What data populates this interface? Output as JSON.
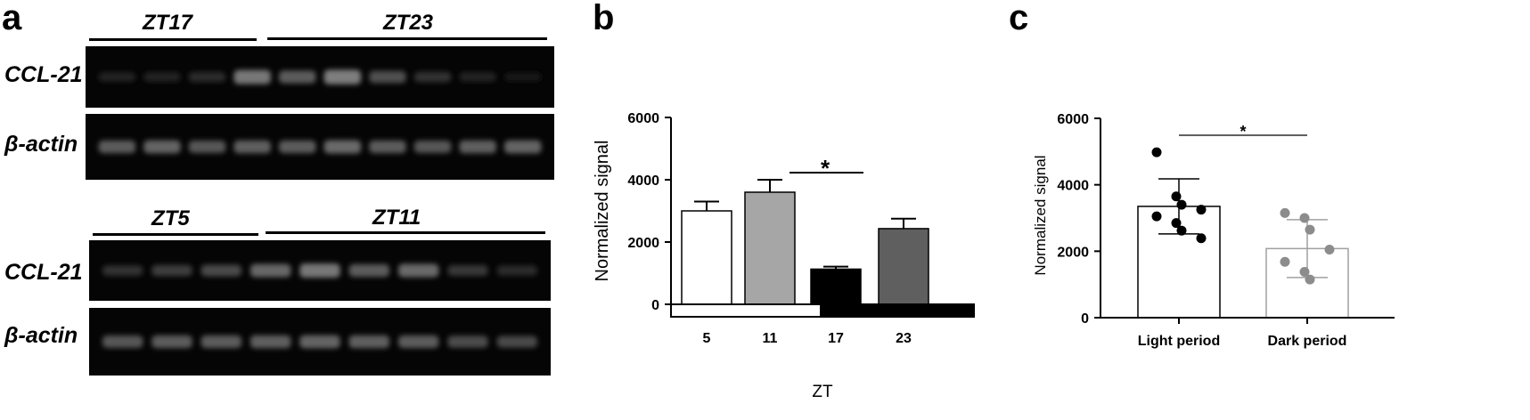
{
  "panels": {
    "a": "a",
    "b": "b",
    "c": "c"
  },
  "blots": {
    "top": {
      "groups": [
        "ZT17",
        "ZT23"
      ],
      "rows": [
        "CCL-21",
        "β-actin"
      ],
      "ccl21_band_intensity": [
        0.05,
        0.06,
        0.1,
        0.42,
        0.3,
        0.45,
        0.25,
        0.12,
        0.06,
        0.02
      ],
      "actin_band_intensity": [
        0.3,
        0.34,
        0.28,
        0.32,
        0.3,
        0.36,
        0.3,
        0.28,
        0.32,
        0.34
      ]
    },
    "bottom": {
      "groups": [
        "ZT5",
        "ZT11"
      ],
      "rows": [
        "CCL-21",
        "β-actin"
      ],
      "ccl21_band_intensity": [
        0.12,
        0.18,
        0.22,
        0.35,
        0.42,
        0.3,
        0.36,
        0.15,
        0.1
      ],
      "actin_band_intensity": [
        0.28,
        0.3,
        0.3,
        0.32,
        0.34,
        0.32,
        0.3,
        0.24,
        0.22
      ]
    }
  },
  "chart_data": [
    {
      "type": "bar",
      "categories": [
        "5",
        "11",
        "17",
        "23"
      ],
      "values": [
        3000,
        3600,
        1130,
        2430
      ],
      "errors": [
        300,
        400,
        80,
        320
      ],
      "fills": [
        "#ffffff",
        "#a6a6a6",
        "#000000",
        "#5f5f5f"
      ],
      "xlabel": "ZT",
      "ylabel": "Normalized signal",
      "ylim": [
        0,
        6000
      ],
      "yticks": [
        "0",
        "2000",
        "4000",
        "6000"
      ],
      "light_bar": [
        "light",
        "dark"
      ],
      "significance": {
        "from": "11",
        "to": "17",
        "label": "*"
      }
    },
    {
      "type": "bar",
      "categories": [
        "Light period",
        "Dark period"
      ],
      "values": [
        3350,
        2080
      ],
      "errors": [
        830,
        870
      ],
      "bar_colors": [
        "#000000",
        "#a0a0a0"
      ],
      "points": [
        [
          4980,
          3650,
          3400,
          3250,
          3050,
          2850,
          2620,
          2390
        ],
        [
          3150,
          3000,
          2650,
          2050,
          1680,
          1380,
          1150
        ]
      ],
      "point_colors": [
        "#000000",
        "#8c8c8c"
      ],
      "xlabel": "",
      "ylabel": "Normalized signal",
      "ylim": [
        0,
        6000
      ],
      "yticks": [
        "0",
        "2000",
        "4000",
        "6000"
      ],
      "significance": {
        "from": "Light period",
        "to": "Dark period",
        "label": "*"
      }
    }
  ]
}
